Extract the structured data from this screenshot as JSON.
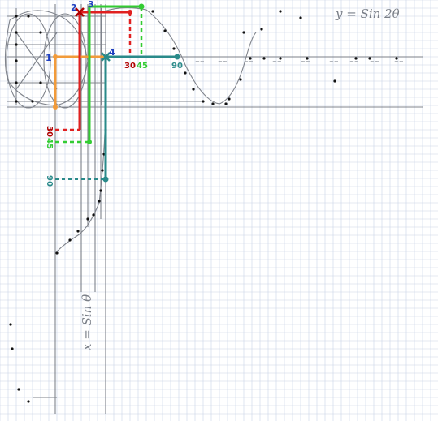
{
  "diagram": {
    "annotations": {
      "equation_top": "y = Sin 2θ",
      "equation_side": "x = Sin θ"
    },
    "points": {
      "p1": "1",
      "p2": "2",
      "p3": "3",
      "p4": "4"
    },
    "angle_labels": {
      "h30": "30",
      "h45": "45",
      "h90": "90",
      "v30": "30",
      "v45": "45",
      "v90": "90"
    },
    "colors": {
      "paper": "#ffffff",
      "grid": "#c9d3e6",
      "pencil": "#6b6f78",
      "dot": "#111111",
      "red": "#e02020",
      "green": "#33cc33",
      "orange": "#f29b3a",
      "teal": "#2a8a8a",
      "blue": "#1f3fbf",
      "darkred": "#b00000"
    }
  }
}
